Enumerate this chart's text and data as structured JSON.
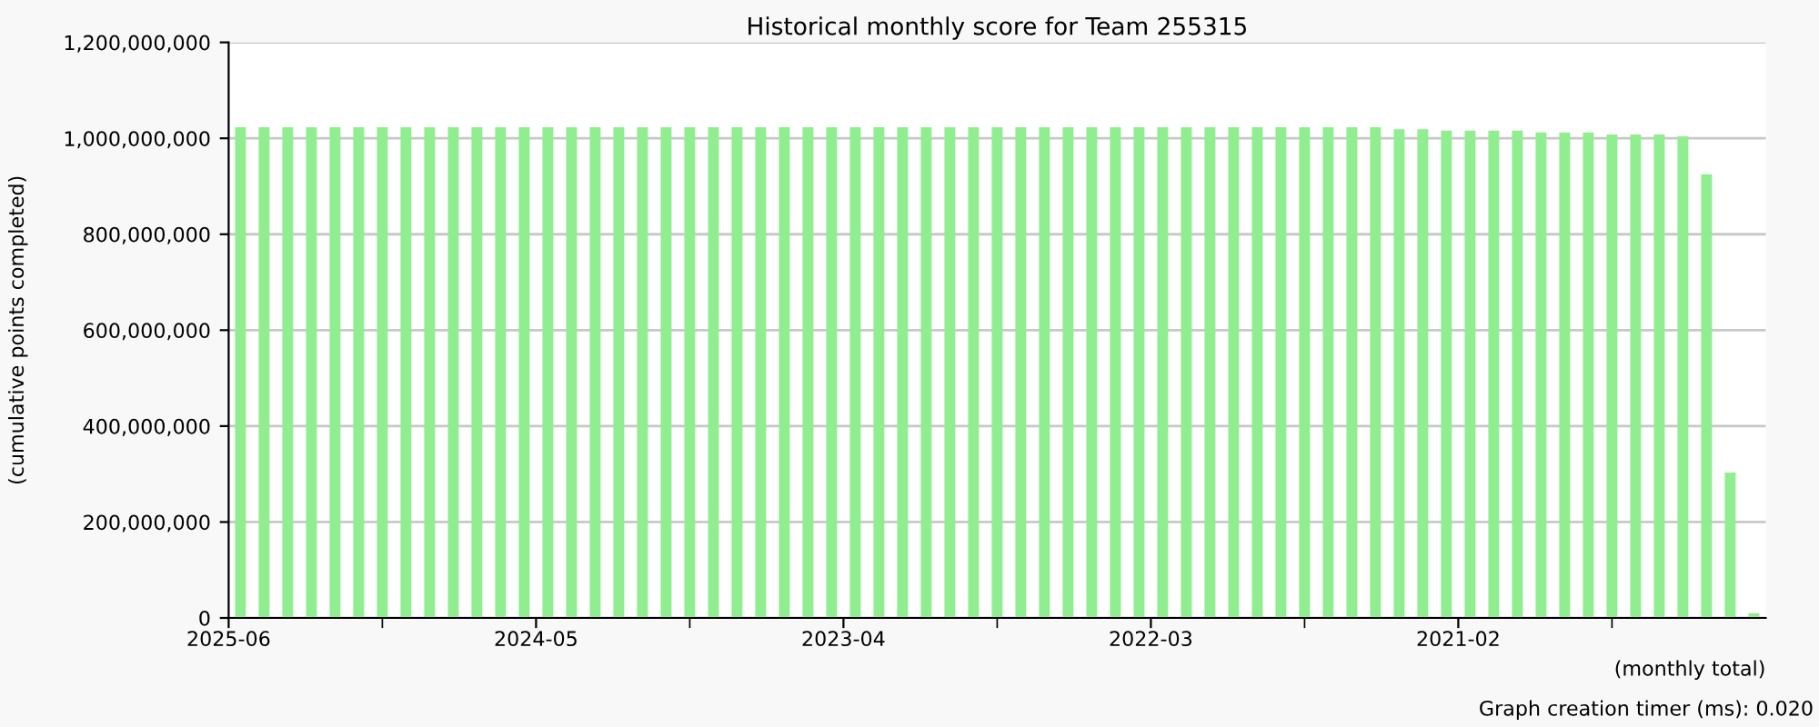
{
  "chart_data": {
    "type": "bar",
    "title": "Historical monthly score for Team 255315",
    "ylabel": "(cumulative points completed)",
    "xlabel": "(monthly total)",
    "annotations": [
      "Graph creation timer (ms): 0.020"
    ],
    "categories": [
      "2025-06",
      null,
      null,
      null,
      null,
      null,
      null,
      null,
      null,
      null,
      null,
      null,
      null,
      "2024-05",
      null,
      null,
      null,
      null,
      null,
      null,
      null,
      null,
      null,
      null,
      null,
      null,
      "2023-04",
      null,
      null,
      null,
      null,
      null,
      null,
      null,
      null,
      null,
      null,
      null,
      null,
      "2022-03",
      null,
      null,
      null,
      null,
      null,
      null,
      null,
      null,
      null,
      null,
      null,
      null,
      "2021-02",
      null,
      null,
      null,
      null,
      null,
      null,
      null,
      null,
      null,
      null,
      null,
      null
    ],
    "values": [
      1023000000,
      1023000000,
      1023000000,
      1023000000,
      1023000000,
      1023000000,
      1023000000,
      1023000000,
      1023000000,
      1023000000,
      1023000000,
      1023000000,
      1023000000,
      1023000000,
      1023000000,
      1023000000,
      1023000000,
      1023000000,
      1023000000,
      1023000000,
      1023000000,
      1023000000,
      1023000000,
      1023000000,
      1023000000,
      1023000000,
      1023000000,
      1023000000,
      1023000000,
      1023000000,
      1023000000,
      1023000000,
      1023000000,
      1023000000,
      1023000000,
      1023000000,
      1023000000,
      1023000000,
      1023000000,
      1023000000,
      1023000000,
      1023000000,
      1023000000,
      1023000000,
      1023000000,
      1023000000,
      1023000000,
      1023000000,
      1023000000,
      1019000000,
      1019000000,
      1016000000,
      1016000000,
      1016000000,
      1016000000,
      1012000000,
      1012000000,
      1012000000,
      1008000000,
      1008000000,
      1008000000,
      1004000000,
      925000000,
      303000000,
      10000000
    ],
    "color": "#90ee90",
    "ylim": [
      0,
      1200000000
    ],
    "yticks": [
      {
        "value": 0,
        "label": "0"
      },
      {
        "value": 200000000,
        "label": "200,000,000"
      },
      {
        "value": 400000000,
        "label": "400,000,000"
      },
      {
        "value": 600000000,
        "label": "600,000,000"
      },
      {
        "value": 800000000,
        "label": "800,000,000"
      },
      {
        "value": 1000000000,
        "label": "1,000,000,000"
      },
      {
        "value": 1200000000,
        "label": "1,200,000,000"
      }
    ],
    "grid": "y"
  }
}
